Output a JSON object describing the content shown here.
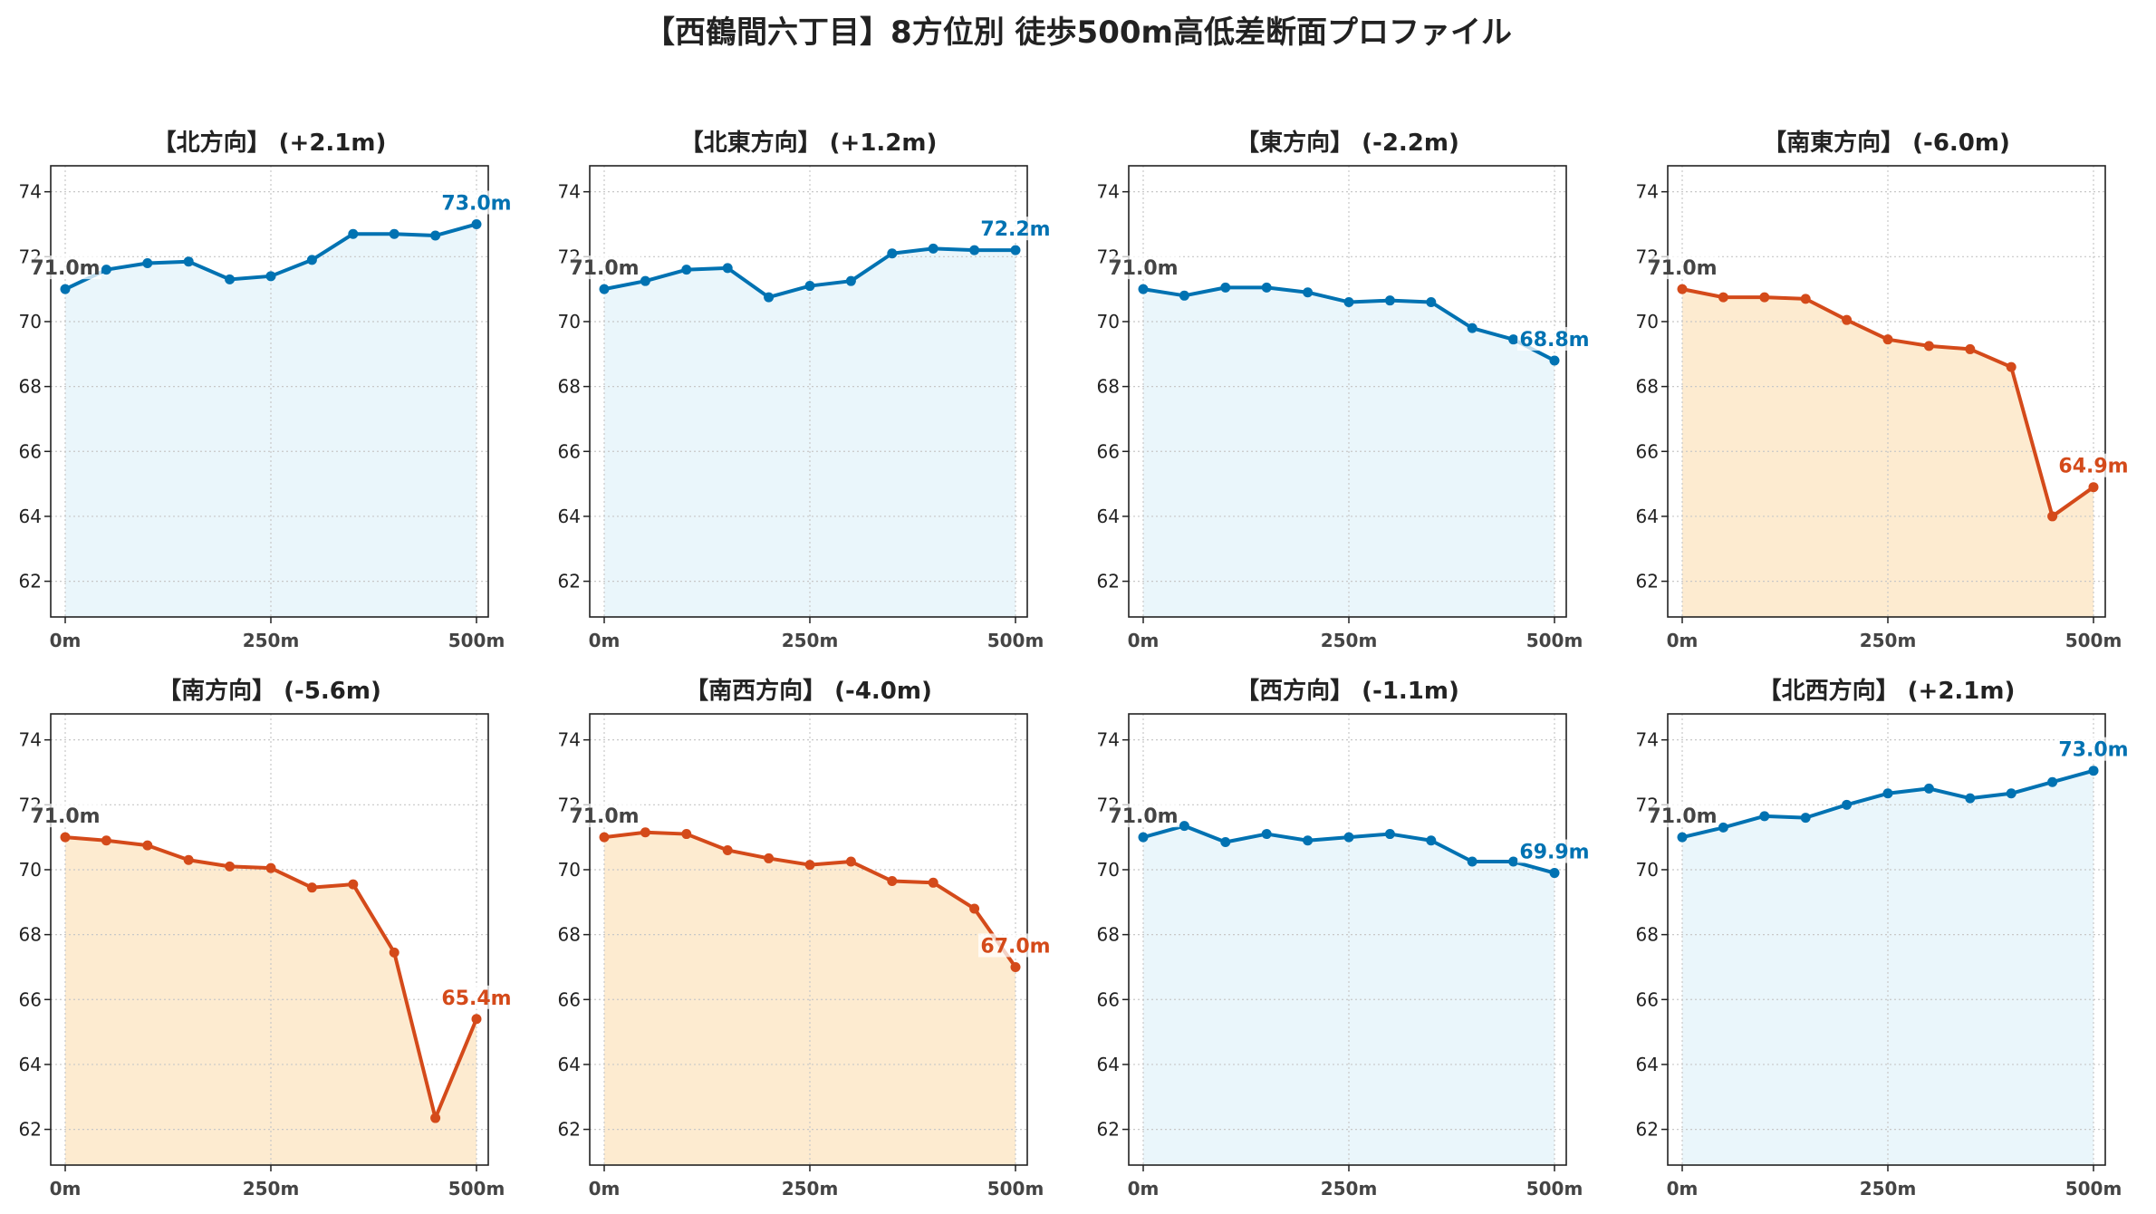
{
  "suptitle": "【西鶴間六丁目】8方位別 徒歩500m高低差断面プロファイル",
  "colors": {
    "up_line": "#0072b2",
    "up_fill": "#eaf6fb",
    "down_line": "#d44a1a",
    "down_fill": "#fdebd0",
    "start_label": "#444444",
    "grid": "#c8c8c8"
  },
  "chart_data": [
    {
      "type": "area",
      "title": "【北方向】 (+2.1m)",
      "trend": "up",
      "x": [
        0,
        50,
        100,
        150,
        200,
        250,
        300,
        350,
        400,
        450,
        500
      ],
      "y": [
        71.0,
        71.6,
        71.8,
        71.85,
        71.3,
        71.4,
        71.9,
        72.7,
        72.7,
        72.65,
        73.0
      ],
      "start_label": "71.0m",
      "end_label": "73.0m",
      "xticks": [
        "0m",
        "250m",
        "500m"
      ],
      "yticks": [
        62,
        64,
        66,
        68,
        70,
        72,
        74
      ],
      "ylim": [
        60.9,
        74.8
      ],
      "grid": true
    },
    {
      "type": "area",
      "title": "【北東方向】 (+1.2m)",
      "trend": "up",
      "x": [
        0,
        50,
        100,
        150,
        200,
        250,
        300,
        350,
        400,
        450,
        500
      ],
      "y": [
        71.0,
        71.25,
        71.6,
        71.65,
        70.75,
        71.1,
        71.25,
        72.1,
        72.25,
        72.2,
        72.2
      ],
      "start_label": "71.0m",
      "end_label": "72.2m",
      "xticks": [
        "0m",
        "250m",
        "500m"
      ],
      "yticks": [
        62,
        64,
        66,
        68,
        70,
        72,
        74
      ],
      "ylim": [
        60.9,
        74.8
      ],
      "grid": true
    },
    {
      "type": "area",
      "title": "【東方向】 (-2.2m)",
      "trend": "up",
      "x": [
        0,
        50,
        100,
        150,
        200,
        250,
        300,
        350,
        400,
        450,
        500
      ],
      "y": [
        71.0,
        70.8,
        71.05,
        71.05,
        70.9,
        70.6,
        70.65,
        70.6,
        69.8,
        69.45,
        68.8
      ],
      "start_label": "71.0m",
      "end_label": "68.8m",
      "xticks": [
        "0m",
        "250m",
        "500m"
      ],
      "yticks": [
        62,
        64,
        66,
        68,
        70,
        72,
        74
      ],
      "ylim": [
        60.9,
        74.8
      ],
      "grid": true
    },
    {
      "type": "area",
      "title": "【南東方向】 (-6.0m)",
      "trend": "down",
      "x": [
        0,
        50,
        100,
        150,
        200,
        250,
        300,
        350,
        400,
        450,
        500
      ],
      "y": [
        71.0,
        70.75,
        70.75,
        70.7,
        70.05,
        69.45,
        69.25,
        69.15,
        68.6,
        64.0,
        64.9
      ],
      "start_label": "71.0m",
      "end_label": "64.9m",
      "xticks": [
        "0m",
        "250m",
        "500m"
      ],
      "yticks": [
        62,
        64,
        66,
        68,
        70,
        72,
        74
      ],
      "ylim": [
        60.9,
        74.8
      ],
      "grid": true
    },
    {
      "type": "area",
      "title": "【南方向】 (-5.6m)",
      "trend": "down",
      "x": [
        0,
        50,
        100,
        150,
        200,
        250,
        300,
        350,
        400,
        450,
        500
      ],
      "y": [
        71.0,
        70.9,
        70.75,
        70.3,
        70.1,
        70.05,
        69.45,
        69.55,
        67.45,
        62.35,
        65.4
      ],
      "start_label": "71.0m",
      "end_label": "65.4m",
      "xticks": [
        "0m",
        "250m",
        "500m"
      ],
      "yticks": [
        62,
        64,
        66,
        68,
        70,
        72,
        74
      ],
      "ylim": [
        60.9,
        74.8
      ],
      "grid": true
    },
    {
      "type": "area",
      "title": "【南西方向】 (-4.0m)",
      "trend": "down",
      "x": [
        0,
        50,
        100,
        150,
        200,
        250,
        300,
        350,
        400,
        450,
        500
      ],
      "y": [
        71.0,
        71.15,
        71.1,
        70.6,
        70.35,
        70.15,
        70.25,
        69.65,
        69.6,
        68.8,
        67.0
      ],
      "start_label": "71.0m",
      "end_label": "67.0m",
      "xticks": [
        "0m",
        "250m",
        "500m"
      ],
      "yticks": [
        62,
        64,
        66,
        68,
        70,
        72,
        74
      ],
      "ylim": [
        60.9,
        74.8
      ],
      "grid": true
    },
    {
      "type": "area",
      "title": "【西方向】 (-1.1m)",
      "trend": "up",
      "x": [
        0,
        50,
        100,
        150,
        200,
        250,
        300,
        350,
        400,
        450,
        500
      ],
      "y": [
        71.0,
        71.35,
        70.85,
        71.1,
        70.9,
        71.0,
        71.1,
        70.9,
        70.25,
        70.25,
        69.9
      ],
      "start_label": "71.0m",
      "end_label": "69.9m",
      "xticks": [
        "0m",
        "250m",
        "500m"
      ],
      "yticks": [
        62,
        64,
        66,
        68,
        70,
        72,
        74
      ],
      "ylim": [
        60.9,
        74.8
      ],
      "grid": true
    },
    {
      "type": "area",
      "title": "【北西方向】 (+2.1m)",
      "trend": "up",
      "x": [
        0,
        50,
        100,
        150,
        200,
        250,
        300,
        350,
        400,
        450,
        500
      ],
      "y": [
        71.0,
        71.3,
        71.65,
        71.6,
        72.0,
        72.35,
        72.5,
        72.2,
        72.35,
        72.7,
        73.05
      ],
      "start_label": "71.0m",
      "end_label": "73.0m",
      "xticks": [
        "0m",
        "250m",
        "500m"
      ],
      "yticks": [
        62,
        64,
        66,
        68,
        70,
        72,
        74
      ],
      "ylim": [
        60.9,
        74.8
      ],
      "grid": true
    }
  ]
}
